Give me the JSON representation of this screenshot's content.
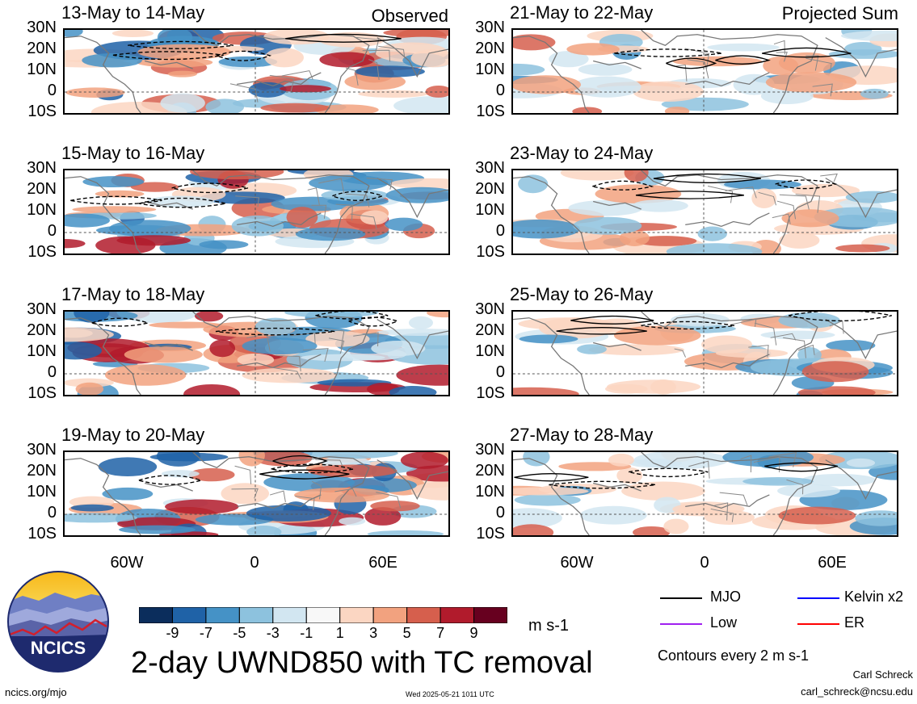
{
  "columns": {
    "left_title": "Observed",
    "right_title": "Projected Sum"
  },
  "panels_left": [
    {
      "dates": "13-May to 14-May"
    },
    {
      "dates": "15-May to 16-May"
    },
    {
      "dates": "17-May to 18-May"
    },
    {
      "dates": "19-May to 20-May"
    }
  ],
  "panels_right": [
    {
      "dates": "21-May to 22-May"
    },
    {
      "dates": "23-May to 24-May"
    },
    {
      "dates": "25-May to 26-May"
    },
    {
      "dates": "27-May to 28-May"
    }
  ],
  "lat_labels": [
    "30N",
    "20N",
    "10N",
    "0",
    "10S"
  ],
  "lon_labels": [
    "60W",
    "0",
    "60E"
  ],
  "colorbar": {
    "labels": [
      "-9",
      "-7",
      "-5",
      "-3",
      "-1",
      "1",
      "3",
      "5",
      "7",
      "9"
    ],
    "unit": "m s-1",
    "colors": [
      "#0b2d5c",
      "#1f62a7",
      "#4592c6",
      "#8dc2de",
      "#d2e6f1",
      "#f8f8f8",
      "#fbd6c2",
      "#f2a27f",
      "#d65f4d",
      "#b11b2c",
      "#67001f"
    ]
  },
  "title": "2-day UWND850 with TC removal",
  "legend": {
    "items": [
      {
        "label": "MJO",
        "color": "#000000"
      },
      {
        "label": "Kelvin x2",
        "color": "#0000ff"
      },
      {
        "label": "Low",
        "color": "#a020f0"
      },
      {
        "label": "ER",
        "color": "#ff0000"
      }
    ],
    "contours_note": "Contours every 2 m s-1"
  },
  "logo": {
    "text": "NCICS"
  },
  "footer": {
    "url": "ncics.org/mjo",
    "timestamp": "Wed 2025-05-21 1011 UTC",
    "author": "Carl Schreck",
    "email": "carl_schreck@ncsu.edu"
  }
}
